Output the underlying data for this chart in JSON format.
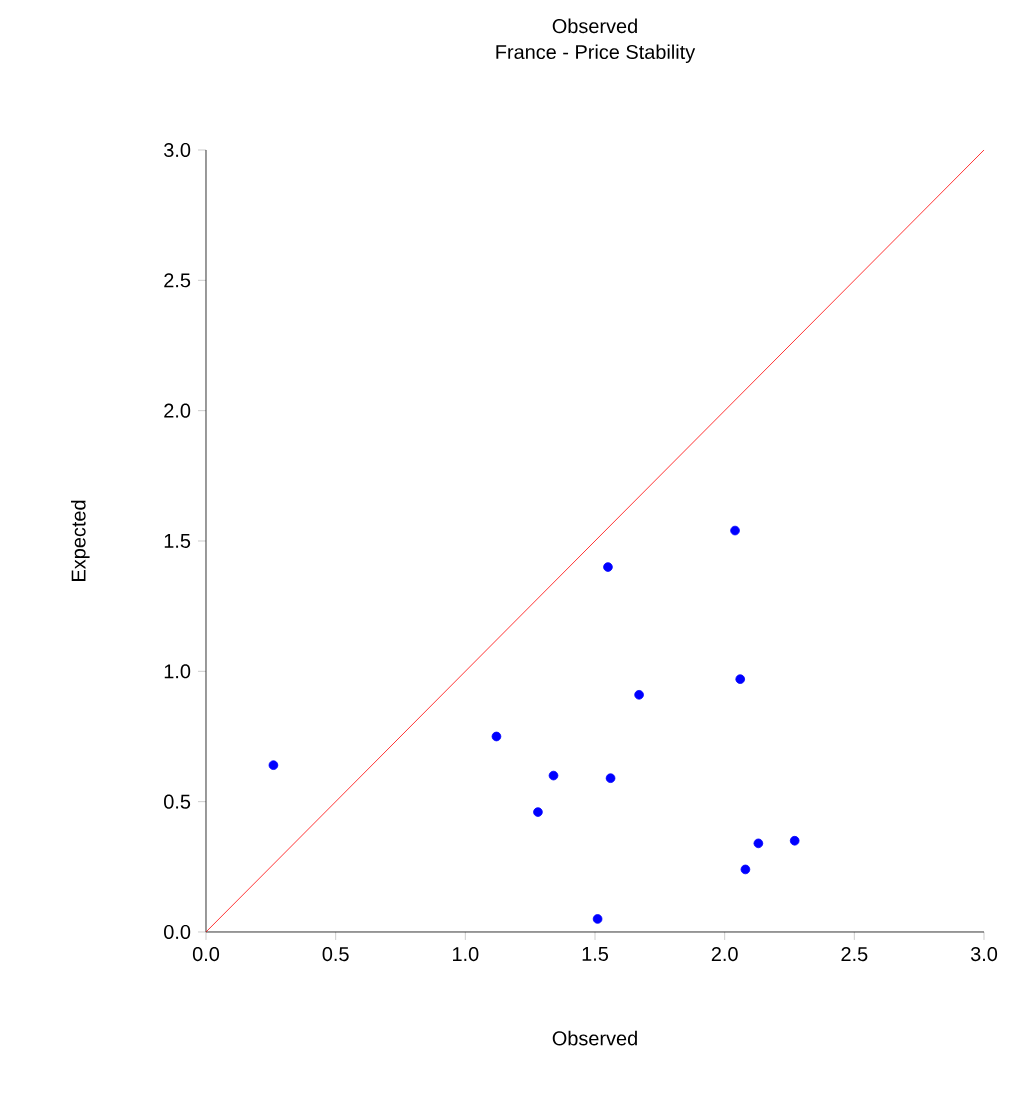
{
  "chart_data": {
    "type": "scatter",
    "title": "Observed",
    "subtitle": "France - Price Stability",
    "xlabel": "Observed",
    "ylabel": "Expected",
    "xlim": [
      0,
      3
    ],
    "ylim": [
      0,
      3
    ],
    "xticks": [
      {
        "value": 0,
        "label": "0.0"
      },
      {
        "value": 0.5,
        "label": "0.5"
      },
      {
        "value": 1,
        "label": "1.0"
      },
      {
        "value": 1.5,
        "label": "1.5"
      },
      {
        "value": 2,
        "label": "2.0"
      },
      {
        "value": 2.5,
        "label": "2.5"
      },
      {
        "value": 3,
        "label": "3.0"
      }
    ],
    "yticks": [
      {
        "value": 0,
        "label": "0.0"
      },
      {
        "value": 0.5,
        "label": "0.5"
      },
      {
        "value": 1,
        "label": "1.0"
      },
      {
        "value": 1.5,
        "label": "1.5"
      },
      {
        "value": 2,
        "label": "2.0"
      },
      {
        "value": 2.5,
        "label": "2.5"
      },
      {
        "value": 3,
        "label": "3.0"
      }
    ],
    "grid": false,
    "series": [
      {
        "color": "#0000ff",
        "marker": "circle",
        "x": [
          0.26,
          1.12,
          1.28,
          1.34,
          1.51,
          1.55,
          2.04,
          2.06,
          1.67,
          1.56,
          2.13,
          2.27,
          2.08
        ],
        "values": [
          0.64,
          0.75,
          0.46,
          0.6,
          0.05,
          1.4,
          1.54,
          0.97,
          0.91,
          0.59,
          0.34,
          0.35,
          0.24
        ]
      },
      {
        "type": "line",
        "color": "#ff0000",
        "marker": "none",
        "x": [
          0,
          3
        ],
        "values": [
          0,
          3
        ]
      }
    ]
  }
}
